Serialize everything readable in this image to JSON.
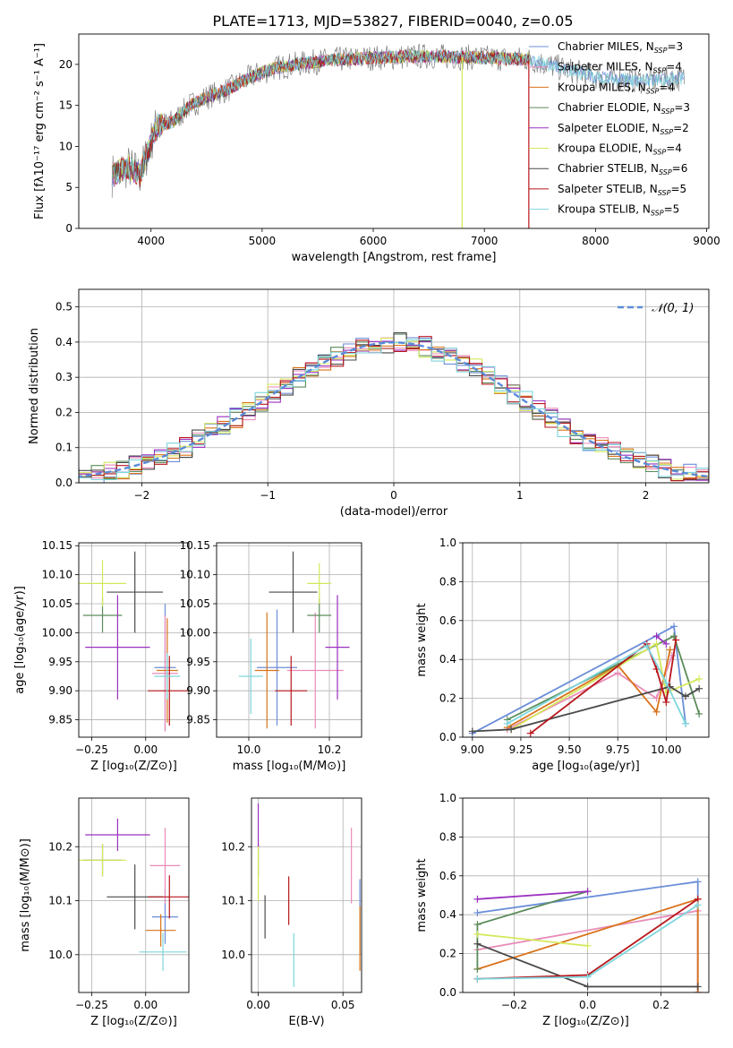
{
  "figure": {
    "title": "PLATE=1713, MJD=53827, FIBERID=0040, z=0.05"
  },
  "colors": {
    "Chabrier MILES": "#6b8ed8",
    "Salpeter MILES": "#e98bb8",
    "Kroupa MILES": "#d9731a",
    "Chabrier ELODIE": "#5b8c5a",
    "Salpeter ELODIE": "#9b30c0",
    "Kroupa ELODIE": "#d4e85a",
    "Chabrier STELIB": "#4a4a4a",
    "Salpeter STELIB": "#b8161b",
    "Kroupa STELIB": "#7dd6dc",
    "data": "#808080",
    "normal": "#5b8bd8"
  },
  "chart_data": [
    {
      "id": "spectrum",
      "type": "line",
      "xlabel": "wavelength [Angstrom, rest frame]",
      "ylabel": "Flux [fλ10⁻¹⁷ erg cm⁻² s⁻¹ A⁻¹]",
      "xlim": [
        3350,
        9020
      ],
      "ylim": [
        0,
        23.7
      ],
      "xticks": [
        4000,
        5000,
        6000,
        7000,
        8000,
        9000
      ],
      "yticks": [
        0,
        5,
        10,
        15,
        20
      ],
      "grid": false,
      "legend_position": "top-right",
      "legend": [
        {
          "name": "Chabrier MILES",
          "label": "Chabrier MILES, N",
          "sub": "SSP",
          "n": "=3"
        },
        {
          "name": "Salpeter MILES",
          "label": "Salpeter MILES, N",
          "sub": "SSP",
          "n": "=4"
        },
        {
          "name": "Kroupa MILES",
          "label": "Kroupa MILES, N",
          "sub": "SSP",
          "n": "=4"
        },
        {
          "name": "Chabrier ELODIE",
          "label": "Chabrier ELODIE, N",
          "sub": "SSP",
          "n": "=3"
        },
        {
          "name": "Salpeter ELODIE",
          "label": "Salpeter ELODIE, N",
          "sub": "SSP",
          "n": "=2"
        },
        {
          "name": "Kroupa ELODIE",
          "label": "Kroupa ELODIE, N",
          "sub": "SSP",
          "n": "=4"
        },
        {
          "name": "Chabrier STELIB",
          "label": "Chabrier STELIB, N",
          "sub": "SSP",
          "n": "=6"
        },
        {
          "name": "Salpeter STELIB",
          "label": "Salpeter STELIB, N",
          "sub": "SSP",
          "n": "=5"
        },
        {
          "name": "Kroupa STELIB",
          "label": "Kroupa STELIB, N",
          "sub": "SSP",
          "n": "=5"
        }
      ],
      "continuum": [
        [
          3650,
          6.5
        ],
        [
          3800,
          7.5
        ],
        [
          3900,
          6.5
        ],
        [
          3950,
          8.5
        ],
        [
          4050,
          12.5
        ],
        [
          4200,
          13.0
        ],
        [
          4350,
          15.0
        ],
        [
          4500,
          16.0
        ],
        [
          4700,
          17.0
        ],
        [
          4900,
          18.5
        ],
        [
          5100,
          19.5
        ],
        [
          5300,
          20.0
        ],
        [
          5600,
          20.5
        ],
        [
          6000,
          20.8
        ],
        [
          6500,
          21.0
        ],
        [
          7000,
          20.8
        ],
        [
          7400,
          20.6
        ],
        [
          7700,
          19.5
        ],
        [
          8000,
          18.5
        ],
        [
          8400,
          18.0
        ],
        [
          8800,
          18.3
        ]
      ],
      "line_drops": [
        {
          "series": "Kroupa ELODIE",
          "x": 6800,
          "to": 0
        },
        {
          "series": "Salpeter STELIB",
          "x": 7400,
          "to": 0
        }
      ]
    },
    {
      "id": "residuals",
      "type": "histogram",
      "xlabel": "(data-model)/error",
      "ylabel": "Normed distribution",
      "xlim": [
        -2.5,
        2.5
      ],
      "ylim": [
        0,
        0.55
      ],
      "xticks": [
        -2,
        -1,
        0,
        1,
        2
      ],
      "yticks": [
        0.0,
        0.1,
        0.2,
        0.3,
        0.4,
        0.5
      ],
      "grid": true,
      "bin_width": 0.1,
      "legend_position": "top-right",
      "normal_curve": {
        "label": "𝒩(0, 1)",
        "mean": 0,
        "sigma": 1
      }
    },
    {
      "id": "age_vs_Z",
      "type": "errorbar",
      "xlabel": "Z [log₁₀(Z/Z⊙)]",
      "ylabel": "age  [log₁₀(age/yr)]",
      "xlim": [
        -0.31,
        0.2
      ],
      "ylim": [
        9.82,
        10.155
      ],
      "xticks": [
        -0.25,
        0.0
      ],
      "xtick_labels": [
        "−0.25",
        "0.00"
      ],
      "yticks": [
        9.85,
        9.9,
        9.95,
        10.0,
        10.05,
        10.1,
        10.15
      ],
      "grid": true,
      "points": [
        {
          "series": "Chabrier MILES",
          "x": 0.09,
          "xerr": 0.05,
          "y": 9.94,
          "yerr": 0.11
        },
        {
          "series": "Salpeter MILES",
          "x": 0.09,
          "xerr": 0.06,
          "y": 9.93,
          "yerr": 0.1
        },
        {
          "series": "Kroupa MILES",
          "x": 0.1,
          "xerr": 0.05,
          "y": 9.935,
          "yerr": 0.09
        },
        {
          "series": "Chabrier ELODIE",
          "x": -0.2,
          "xerr": 0.09,
          "y": 10.03,
          "yerr": 0.03
        },
        {
          "series": "Salpeter ELODIE",
          "x": -0.13,
          "xerr": 0.15,
          "y": 9.975,
          "yerr": 0.09
        },
        {
          "series": "Kroupa ELODIE",
          "x": -0.2,
          "xerr": 0.11,
          "y": 10.085,
          "yerr": 0.04
        },
        {
          "series": "Chabrier STELIB",
          "x": -0.05,
          "xerr": 0.13,
          "y": 10.07,
          "yerr": 0.07
        },
        {
          "series": "Salpeter STELIB",
          "x": 0.11,
          "xerr": 0.1,
          "y": 9.9,
          "yerr": 0.06
        },
        {
          "series": "Kroupa STELIB",
          "x": 0.1,
          "xerr": 0.06,
          "y": 9.925,
          "yerr": 0.04
        }
      ]
    },
    {
      "id": "age_vs_mass",
      "type": "errorbar",
      "xlabel": "mass [log₁₀(M/M⊙)]",
      "ylabel": "",
      "xlim": [
        9.92,
        10.28
      ],
      "ylim": [
        9.82,
        10.155
      ],
      "xticks": [
        10.0,
        10.2
      ],
      "xtick_labels": [
        "10.0",
        "10.2"
      ],
      "yticks": [
        9.85,
        9.9,
        9.95,
        10.0,
        10.05,
        10.1,
        10.15
      ],
      "grid": true,
      "points": [
        {
          "series": "Chabrier MILES",
          "x": 10.07,
          "xerr": 0.05,
          "y": 9.94,
          "yerr": 0.1
        },
        {
          "series": "Salpeter MILES",
          "x": 10.165,
          "xerr": 0.07,
          "y": 9.935,
          "yerr": 0.1
        },
        {
          "series": "Kroupa MILES",
          "x": 10.045,
          "xerr": 0.03,
          "y": 9.935,
          "yerr": 0.1
        },
        {
          "series": "Chabrier ELODIE",
          "x": 10.175,
          "xerr": 0.03,
          "y": 10.03,
          "yerr": 0.03
        },
        {
          "series": "Salpeter ELODIE",
          "x": 10.22,
          "xerr": 0.03,
          "y": 9.975,
          "yerr": 0.09
        },
        {
          "series": "Kroupa ELODIE",
          "x": 10.175,
          "xerr": 0.03,
          "y": 10.085,
          "yerr": 0.035
        },
        {
          "series": "Chabrier STELIB",
          "x": 10.11,
          "xerr": 0.06,
          "y": 10.07,
          "yerr": 0.07
        },
        {
          "series": "Salpeter STELIB",
          "x": 10.105,
          "xerr": 0.04,
          "y": 9.9,
          "yerr": 0.06
        },
        {
          "series": "Kroupa STELIB",
          "x": 10.005,
          "xerr": 0.03,
          "y": 9.925,
          "yerr": 0.065
        }
      ]
    },
    {
      "id": "weight_vs_age",
      "type": "line",
      "xlabel": "age  [log₁₀(age/yr)]",
      "ylabel": "mass weight",
      "xlim": [
        8.95,
        10.22
      ],
      "ylim": [
        0,
        1.0
      ],
      "xticks": [
        9.0,
        9.25,
        9.5,
        9.75,
        10.0
      ],
      "xtick_labels": [
        "9.00",
        "9.25",
        "9.50",
        "9.75",
        "10.00"
      ],
      "yticks": [
        0.0,
        0.2,
        0.4,
        0.6,
        0.8,
        1.0
      ],
      "grid": true,
      "series": [
        {
          "name": "Chabrier MILES",
          "x": [
            9.0,
            10.04,
            10.1
          ],
          "y": [
            0.02,
            0.57,
            0.07
          ]
        },
        {
          "name": "Salpeter MILES",
          "x": [
            9.18,
            9.75,
            9.95,
            10.03
          ],
          "y": [
            0.04,
            0.33,
            0.2,
            0.42
          ]
        },
        {
          "name": "Kroupa MILES",
          "x": [
            9.18,
            9.75,
            9.95,
            10.02
          ],
          "y": [
            0.05,
            0.37,
            0.13,
            0.45
          ]
        },
        {
          "name": "Chabrier ELODIE",
          "x": [
            9.18,
            10.04,
            10.17
          ],
          "y": [
            0.09,
            0.52,
            0.12
          ]
        },
        {
          "name": "Salpeter ELODIE",
          "x": [
            9.95,
            10.0
          ],
          "y": [
            0.52,
            0.48
          ]
        },
        {
          "name": "Kroupa ELODIE",
          "x": [
            9.2,
            9.95,
            10.0,
            10.17
          ],
          "y": [
            0.04,
            0.48,
            0.23,
            0.3
          ]
        },
        {
          "name": "Chabrier STELIB",
          "x": [
            9.0,
            9.2,
            10.02,
            10.1,
            10.17
          ],
          "y": [
            0.03,
            0.04,
            0.26,
            0.21,
            0.25
          ]
        },
        {
          "name": "Salpeter STELIB",
          "x": [
            9.3,
            9.9,
            9.95,
            10.0,
            10.05
          ],
          "y": [
            0.02,
            0.48,
            0.35,
            0.18,
            0.5
          ]
        },
        {
          "name": "Kroupa STELIB",
          "x": [
            9.18,
            9.9,
            10.0,
            10.1
          ],
          "y": [
            0.07,
            0.47,
            0.28,
            0.07
          ]
        }
      ]
    },
    {
      "id": "mass_vs_Z",
      "type": "errorbar",
      "xlabel": "Z [log₁₀(Z/Z⊙)]",
      "ylabel": "mass [log₁₀(M/M⊙)]",
      "xlim": [
        -0.31,
        0.2
      ],
      "ylim": [
        9.93,
        10.29
      ],
      "xticks": [
        -0.25,
        0.0
      ],
      "xtick_labels": [
        "−0.25",
        "0.00"
      ],
      "yticks": [
        10.0,
        10.1,
        10.2
      ],
      "grid": true,
      "points": [
        {
          "series": "Chabrier MILES",
          "x": 0.09,
          "xerr": 0.06,
          "y": 10.07,
          "yerr": 0.05
        },
        {
          "series": "Salpeter MILES",
          "x": 0.09,
          "xerr": 0.07,
          "y": 10.165,
          "yerr": 0.07
        },
        {
          "series": "Kroupa MILES",
          "x": 0.07,
          "xerr": 0.07,
          "y": 10.045,
          "yerr": 0.03
        },
        {
          "series": "Chabrier ELODIE",
          "x": -0.2,
          "xerr": 0.09,
          "y": 10.175,
          "yerr": 0.03
        },
        {
          "series": "Salpeter ELODIE",
          "x": -0.13,
          "xerr": 0.15,
          "y": 10.222,
          "yerr": 0.03
        },
        {
          "series": "Kroupa ELODIE",
          "x": -0.2,
          "xerr": 0.11,
          "y": 10.175,
          "yerr": 0.03
        },
        {
          "series": "Chabrier STELIB",
          "x": -0.05,
          "xerr": 0.13,
          "y": 10.107,
          "yerr": 0.06
        },
        {
          "series": "Salpeter STELIB",
          "x": 0.11,
          "xerr": 0.1,
          "y": 10.107,
          "yerr": 0.04
        },
        {
          "series": "Kroupa STELIB",
          "x": 0.08,
          "xerr": 0.11,
          "y": 10.005,
          "yerr": 0.035
        }
      ]
    },
    {
      "id": "mass_vs_ebv",
      "type": "errorbar",
      "xlabel": "E(B-V)",
      "ylabel": "",
      "xlim": [
        -0.004,
        0.061
      ],
      "ylim": [
        9.93,
        10.29
      ],
      "xticks": [
        0.0,
        0.05
      ],
      "xtick_labels": [
        "0.00",
        "0.05"
      ],
      "yticks": [
        10.0,
        10.1,
        10.2
      ],
      "grid": true,
      "points": [
        {
          "series": "Chabrier MILES",
          "x": 0.06,
          "xerr": 0,
          "y": 10.07,
          "yerr": 0.07
        },
        {
          "series": "Salpeter MILES",
          "x": 0.055,
          "xerr": 0,
          "y": 10.165,
          "yerr": 0.07
        },
        {
          "series": "Kroupa MILES",
          "x": 0.06,
          "xerr": 0,
          "y": 10.03,
          "yerr": 0.06
        },
        {
          "series": "Chabrier ELODIE",
          "x": 0.0,
          "xerr": 0,
          "y": 10.175,
          "yerr": 0.03
        },
        {
          "series": "Salpeter ELODIE",
          "x": 0.0,
          "xerr": 0,
          "y": 10.24,
          "yerr": 0.04
        },
        {
          "series": "Kroupa ELODIE",
          "x": 0.0,
          "xerr": 0,
          "y": 10.15,
          "yerr": 0.05
        },
        {
          "series": "Chabrier STELIB",
          "x": 0.004,
          "xerr": 0,
          "y": 10.07,
          "yerr": 0.04
        },
        {
          "series": "Salpeter STELIB",
          "x": 0.018,
          "xerr": 0,
          "y": 10.1,
          "yerr": 0.045
        },
        {
          "series": "Kroupa STELIB",
          "x": 0.021,
          "xerr": 0,
          "y": 9.99,
          "yerr": 0.05
        }
      ]
    },
    {
      "id": "weight_vs_Z",
      "type": "line",
      "xlabel": "Z [log₁₀(Z/Z⊙)]",
      "ylabel": "mass weight",
      "xlim": [
        -0.34,
        0.33
      ],
      "ylim": [
        0,
        1.0
      ],
      "xticks": [
        -0.2,
        0.0,
        0.2
      ],
      "xtick_labels": [
        "−0.2",
        "0.0",
        "0.2"
      ],
      "yticks": [
        0.0,
        0.2,
        0.4,
        0.6,
        0.8,
        1.0
      ],
      "grid": true,
      "series": [
        {
          "name": "Chabrier MILES",
          "x": [
            -0.3,
            0.3,
            0.3
          ],
          "y": [
            0.41,
            0.57,
            0.0
          ]
        },
        {
          "name": "Salpeter MILES",
          "x": [
            -0.3,
            0.3,
            0.3
          ],
          "y": [
            0.22,
            0.42,
            0.0
          ]
        },
        {
          "name": "Kroupa MILES",
          "x": [
            -0.3,
            0.3,
            0.3
          ],
          "y": [
            0.12,
            0.48,
            0.0
          ]
        },
        {
          "name": "Chabrier ELODIE",
          "x": [
            -0.3,
            -0.3,
            0.0
          ],
          "y": [
            0.12,
            0.35,
            0.52
          ]
        },
        {
          "name": "Salpeter ELODIE",
          "x": [
            -0.3,
            0.0
          ],
          "y": [
            0.48,
            0.52
          ]
        },
        {
          "name": "Kroupa ELODIE",
          "x": [
            -0.3,
            0.0
          ],
          "y": [
            0.3,
            0.24
          ]
        },
        {
          "name": "Chabrier STELIB",
          "x": [
            -0.3,
            0.0,
            0.3
          ],
          "y": [
            0.25,
            0.03,
            0.03
          ]
        },
        {
          "name": "Salpeter STELIB",
          "x": [
            -0.3,
            0.0,
            0.3
          ],
          "y": [
            0.07,
            0.09,
            0.48
          ]
        },
        {
          "name": "Kroupa STELIB",
          "x": [
            -0.3,
            0.0,
            0.3
          ],
          "y": [
            0.07,
            0.08,
            0.45
          ]
        }
      ]
    }
  ]
}
